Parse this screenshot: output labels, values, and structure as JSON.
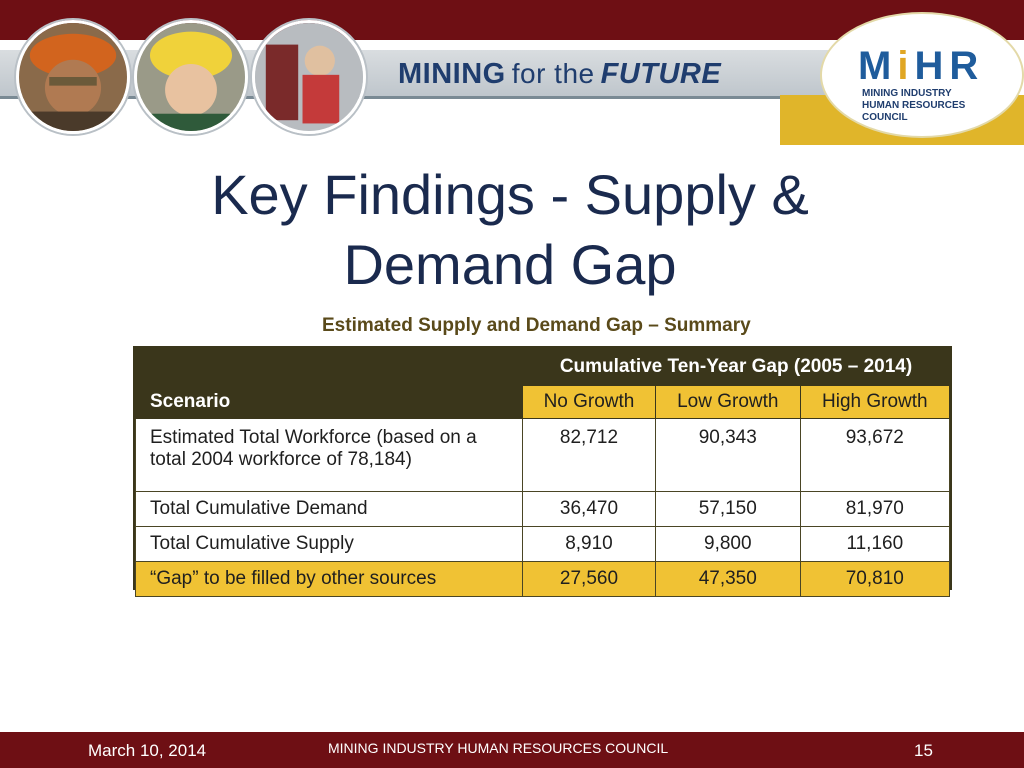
{
  "header": {
    "tagline": {
      "part1": "MINING",
      "part2": "for the",
      "part3": "FUTURE"
    },
    "logo": {
      "letters_a": "M",
      "letters_b": "i",
      "letters_c": "HR",
      "subtitle_line1": "Mining Industry",
      "subtitle_line2": "Human Resources Council"
    }
  },
  "slide": {
    "title_line1": "Key Findings - Supply &",
    "title_line2": "Demand Gap"
  },
  "table": {
    "caption": "Estimated Supply and Demand Gap – Summary",
    "group_header": "Cumulative Ten-Year Gap (2005 – 2014)",
    "scenario_label": "Scenario",
    "columns": [
      "No Growth",
      "Low Growth",
      "High Growth"
    ],
    "rows": [
      {
        "label": "Estimated Total Workforce (based on a total 2004 workforce of 78,184)",
        "values": [
          "82,712",
          "90,343",
          "93,672"
        ]
      },
      {
        "label": "Total Cumulative Demand",
        "values": [
          "36,470",
          "57,150",
          "81,970"
        ]
      },
      {
        "label": "Total Cumulative Supply",
        "values": [
          "8,910",
          "9,800",
          "11,160"
        ]
      },
      {
        "label": "“Gap” to be filled by other sources",
        "values": [
          "27,560",
          "47,350",
          "70,810"
        ]
      }
    ]
  },
  "footer": {
    "date": "March 10, 2014",
    "organization": "MINING INDUSTRY HUMAN RESOURCES COUNCIL",
    "page_number": "15"
  }
}
